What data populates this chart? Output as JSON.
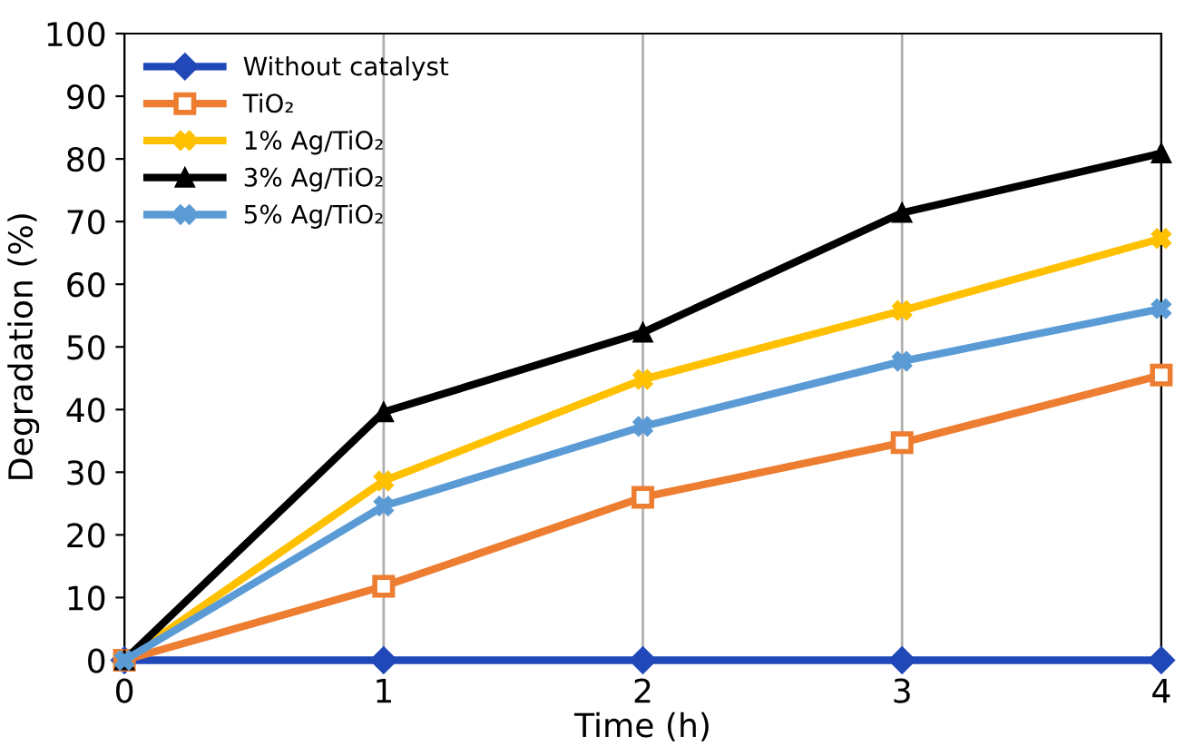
{
  "chart_data": {
    "type": "line",
    "xlabel": "Time (h)",
    "ylabel": "Degradation (%)",
    "x": [
      0,
      1,
      2,
      3,
      4
    ],
    "xlim": [
      0,
      4
    ],
    "xticks": [
      0,
      1,
      2,
      3,
      4
    ],
    "ylim": [
      0,
      100
    ],
    "yticks": [
      0,
      10,
      20,
      30,
      40,
      50,
      60,
      70,
      80,
      90,
      100
    ],
    "grid": "x",
    "legend": "top left",
    "line_style": "solid",
    "series": [
      {
        "name": "Without catalyst",
        "color": "#2048b8",
        "marker": "diamond",
        "values": [
          0,
          0,
          0,
          0,
          0
        ]
      },
      {
        "name": "TiO₂",
        "color": "#ed7d31",
        "marker": "square",
        "values": [
          0,
          11.8,
          26,
          34.7,
          45.5
        ]
      },
      {
        "name": "1% Ag/TiO₂",
        "color": "#ffc000",
        "marker": "cross",
        "values": [
          0,
          28.6,
          44.8,
          55.8,
          67.3
        ]
      },
      {
        "name": "3% Ag/TiO₂",
        "color": "#000000",
        "marker": "triangle",
        "values": [
          0,
          39.6,
          52.3,
          71.4,
          80.9
        ]
      },
      {
        "name": "5% Ag/TiO₂",
        "color": "#5b9bd5",
        "marker": "cross",
        "values": [
          0,
          24.6,
          37.3,
          47.7,
          56.1
        ]
      }
    ]
  }
}
